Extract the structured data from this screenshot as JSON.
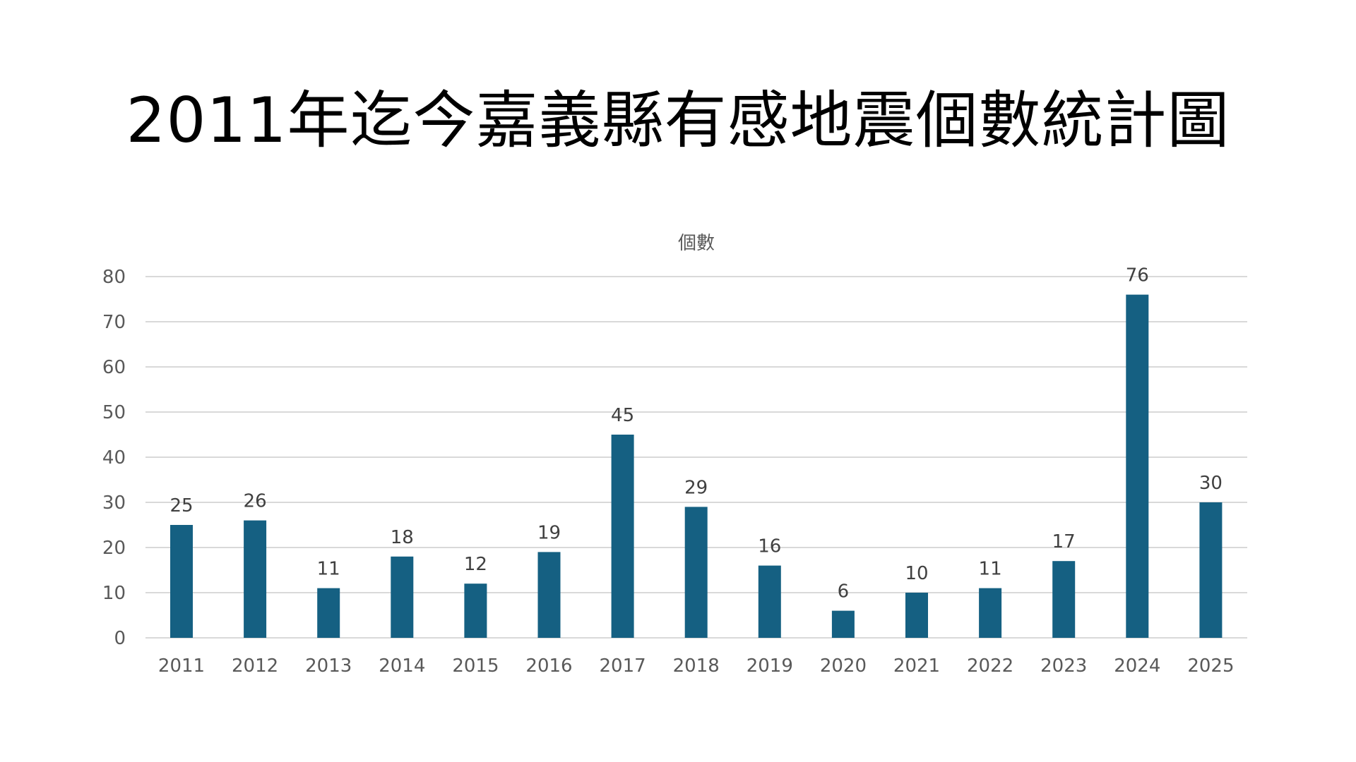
{
  "chart_data": {
    "type": "bar",
    "title": "2011年迄今嘉義縣有感地震個數統計圖",
    "series_title": "個數",
    "categories": [
      "2011",
      "2012",
      "2013",
      "2014",
      "2015",
      "2016",
      "2017",
      "2018",
      "2019",
      "2020",
      "2021",
      "2022",
      "2023",
      "2024",
      "2025"
    ],
    "series": [
      {
        "name": "個數",
        "values": [
          25,
          26,
          11,
          18,
          12,
          19,
          45,
          29,
          16,
          6,
          10,
          11,
          17,
          76,
          30
        ]
      }
    ],
    "ylim": [
      0,
      80
    ],
    "yticks": [
      0,
      10,
      20,
      30,
      40,
      50,
      60,
      70,
      80
    ],
    "grid": true,
    "data_labels": true,
    "bar_color": "#156082",
    "grid_color": "#d9d9d9",
    "text_color": "#595959"
  }
}
